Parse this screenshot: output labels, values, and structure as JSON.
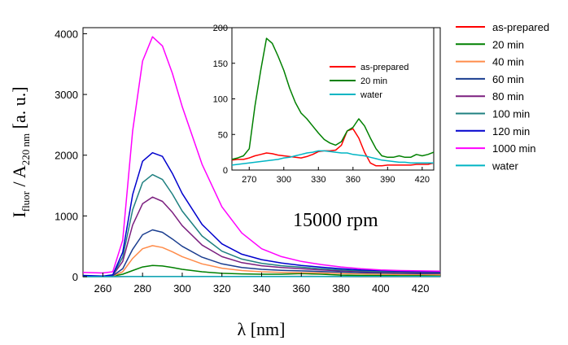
{
  "chart_data": [
    {
      "type": "line",
      "xlabel": "λ [nm]",
      "ylabel": {
        "main": "I",
        "sub1": "fluor",
        "mid": " / A",
        "sub2": "220 nm",
        "unit": "  [a. u.]"
      },
      "annotation": "15000 rpm",
      "xlim": [
        250,
        430
      ],
      "ylim": [
        0,
        4100
      ],
      "xticks": [
        260,
        280,
        300,
        320,
        340,
        360,
        380,
        400,
        420
      ],
      "yticks": [
        0,
        1000,
        2000,
        3000,
        4000
      ],
      "x": [
        250,
        260,
        265,
        270,
        275,
        280,
        285,
        290,
        295,
        300,
        310,
        320,
        330,
        340,
        350,
        360,
        370,
        380,
        390,
        400,
        410,
        420,
        430
      ],
      "series": [
        {
          "name": "as-prepared",
          "color": "#ff0000",
          "values": [
            0,
            0,
            0,
            2,
            3,
            4,
            4,
            4,
            4,
            3,
            3,
            3,
            3,
            3,
            4,
            6,
            4,
            1,
            0,
            0,
            0,
            0,
            0
          ]
        },
        {
          "name": "20 min",
          "color": "#008000",
          "values": [
            10,
            5,
            8,
            40,
            100,
            160,
            185,
            175,
            150,
            120,
            80,
            55,
            45,
            40,
            40,
            50,
            40,
            25,
            20,
            20,
            20,
            20,
            20
          ]
        },
        {
          "name": "40 min",
          "color": "#ff8c4a",
          "values": [
            10,
            5,
            10,
            80,
            300,
            460,
            510,
            480,
            410,
            330,
            210,
            140,
            100,
            80,
            70,
            65,
            60,
            50,
            45,
            40,
            35,
            35,
            30
          ]
        },
        {
          "name": "60 min",
          "color": "#1a3d8f",
          "values": [
            10,
            5,
            15,
            130,
            450,
            690,
            770,
            730,
            620,
            500,
            320,
            210,
            150,
            120,
            105,
            95,
            85,
            75,
            65,
            60,
            55,
            50,
            50
          ]
        },
        {
          "name": "80 min",
          "color": "#7b1f7f",
          "values": [
            15,
            5,
            20,
            250,
            850,
            1200,
            1310,
            1240,
            1060,
            840,
            520,
            330,
            230,
            180,
            150,
            130,
            110,
            95,
            85,
            75,
            70,
            65,
            60
          ]
        },
        {
          "name": "100 min",
          "color": "#1f8080",
          "values": [
            15,
            5,
            25,
            320,
            1100,
            1550,
            1680,
            1600,
            1360,
            1080,
            670,
            420,
            290,
            220,
            180,
            155,
            130,
            110,
            95,
            85,
            80,
            75,
            70
          ]
        },
        {
          "name": "120 min",
          "color": "#0000cd",
          "values": [
            20,
            10,
            30,
            400,
            1350,
            1900,
            2040,
            1980,
            1700,
            1370,
            860,
            540,
            370,
            280,
            225,
            185,
            155,
            130,
            110,
            100,
            90,
            85,
            80
          ]
        },
        {
          "name": "1000 min",
          "color": "#ff00ff",
          "values": [
            70,
            60,
            80,
            600,
            2400,
            3550,
            3950,
            3800,
            3350,
            2800,
            1850,
            1150,
            720,
            460,
            330,
            250,
            200,
            160,
            130,
            110,
            100,
            95,
            90
          ]
        },
        {
          "name": "water",
          "color": "#00b5c4",
          "values": [
            0,
            0,
            0,
            1,
            1,
            1,
            1,
            1,
            1,
            1,
            1,
            1,
            1,
            2,
            2,
            2,
            2,
            2,
            1,
            1,
            1,
            1,
            1
          ]
        }
      ]
    },
    {
      "type": "line",
      "xlim": [
        255,
        430
      ],
      "ylim": [
        0,
        200
      ],
      "xticks": [
        270,
        300,
        330,
        360,
        390,
        420
      ],
      "yticks": [
        0,
        50,
        100,
        150,
        200
      ],
      "x": [
        255,
        260,
        265,
        270,
        275,
        280,
        285,
        290,
        295,
        300,
        305,
        310,
        315,
        320,
        325,
        330,
        335,
        340,
        345,
        350,
        355,
        360,
        365,
        370,
        375,
        380,
        385,
        390,
        395,
        400,
        405,
        410,
        415,
        420,
        425,
        430
      ],
      "series": [
        {
          "name": "as-prepared",
          "color": "#ff0000",
          "values": [
            14,
            15,
            15,
            17,
            20,
            22,
            24,
            23,
            21,
            20,
            19,
            18,
            17,
            19,
            22,
            26,
            27,
            27,
            28,
            35,
            55,
            58,
            45,
            25,
            10,
            6,
            6,
            7,
            7,
            7,
            7,
            7,
            8,
            8,
            8,
            10
          ]
        },
        {
          "name": "20 min",
          "color": "#008000",
          "values": [
            15,
            17,
            20,
            30,
            90,
            140,
            185,
            178,
            160,
            140,
            115,
            95,
            80,
            72,
            62,
            52,
            43,
            38,
            35,
            40,
            55,
            60,
            72,
            62,
            45,
            30,
            20,
            18,
            18,
            20,
            18,
            18,
            22,
            20,
            22,
            25
          ]
        },
        {
          "name": "water",
          "color": "#00b5c4",
          "values": [
            7,
            8,
            9,
            10,
            11,
            12,
            13,
            14,
            15,
            17,
            18,
            20,
            22,
            24,
            25,
            27,
            27,
            26,
            25,
            24,
            24,
            22,
            21,
            20,
            18,
            16,
            14,
            13,
            12,
            11,
            11,
            10,
            10,
            10,
            10,
            10
          ]
        }
      ]
    }
  ]
}
